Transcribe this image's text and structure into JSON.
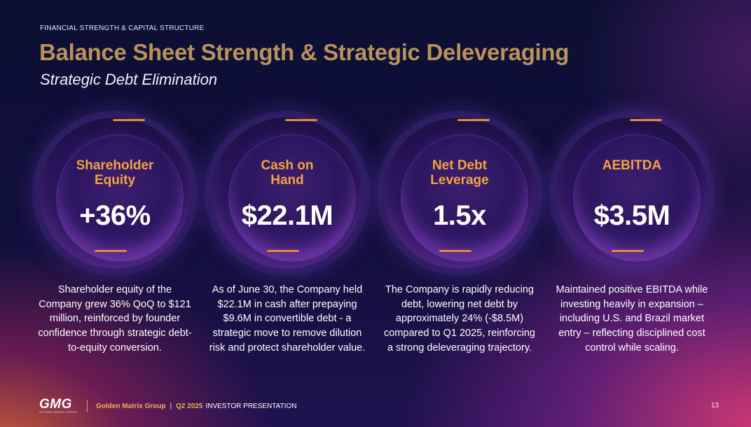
{
  "header": {
    "kicker": "FINANCIAL STRENGTH & CAPITAL STRUCTURE",
    "title": "Balance Sheet Strength & Strategic Deleveraging",
    "subtitle": "Strategic Debt Elimination"
  },
  "cards": [
    {
      "label_line1": "Shareholder",
      "label_line2": "Equity",
      "value": "+36%",
      "description": "Shareholder equity of the Company grew 36% QoQ to $121 million, reinforced by founder confidence through strategic debt-to-equity conversion."
    },
    {
      "label_line1": "Cash on",
      "label_line2": "Hand",
      "value": "$22.1M",
      "description": "As of June 30, the Company held $22.1M in cash after prepaying $9.6M in convertible debt - a strategic move to remove dilution risk and protect shareholder value."
    },
    {
      "label_line1": "Net Debt",
      "label_line2": "Leverage",
      "value": "1.5x",
      "description": "The Company is rapidly reducing debt, lowering net debt by approximately 24% (-$8.5M) compared to Q1 2025, reinforcing a strong deleveraging trajectory."
    },
    {
      "label_line1": "AEBITDA",
      "label_line2": "",
      "value": "$3.5M",
      "description": "Maintained positive EBITDA while investing heavily in expansion – including U.S. and Brazil market entry – reflecting disciplined cost control while scaling."
    }
  ],
  "footer": {
    "logo_text": "GMG",
    "logo_subtext": "GOLDEN MATRIX GROUP",
    "company": "Golden Matrix Group",
    "separator": "|",
    "period": "Q2 2025",
    "presentation": "INVESTOR PRESENTATION",
    "page_number": "13"
  },
  "colors": {
    "title": "#b8925a",
    "accent_orange": "#f0a43e",
    "footer_gold": "#e7b35a",
    "background_navy": "#0c0f33"
  }
}
